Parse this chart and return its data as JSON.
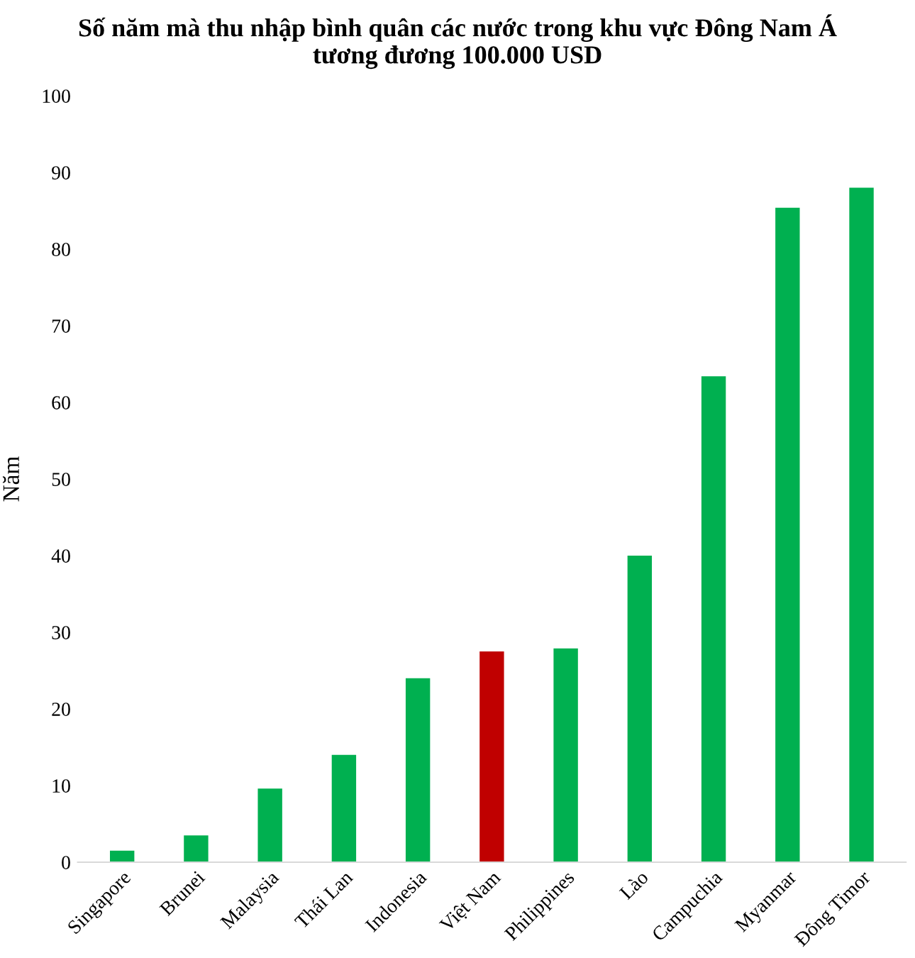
{
  "chart_data": {
    "type": "bar",
    "title": "Số năm mà thu nhập bình quân các nước trong khu vực Đông Nam Á\ntương đương 100.000 USD",
    "ylabel": "Năm",
    "categories": [
      "Singapore",
      "Brunei",
      "Malaysia",
      "Thái Lan",
      "Indonesia",
      "Việt Nam",
      "Philippines",
      "Lào",
      "Campuchia",
      "Myanmar",
      "Đông Timor"
    ],
    "values": [
      1.5,
      3.5,
      9.6,
      14.0,
      24.0,
      27.5,
      27.9,
      40.0,
      63.4,
      85.4,
      88.0
    ],
    "colors": [
      "#00b050",
      "#00b050",
      "#00b050",
      "#00b050",
      "#00b050",
      "#c00000",
      "#00b050",
      "#00b050",
      "#00b050",
      "#00b050",
      "#00b050"
    ],
    "ylim": [
      0,
      100
    ],
    "yticks": [
      0,
      10,
      20,
      30,
      40,
      50,
      60,
      70,
      80,
      90,
      100
    ],
    "grid": false,
    "legend": false
  }
}
